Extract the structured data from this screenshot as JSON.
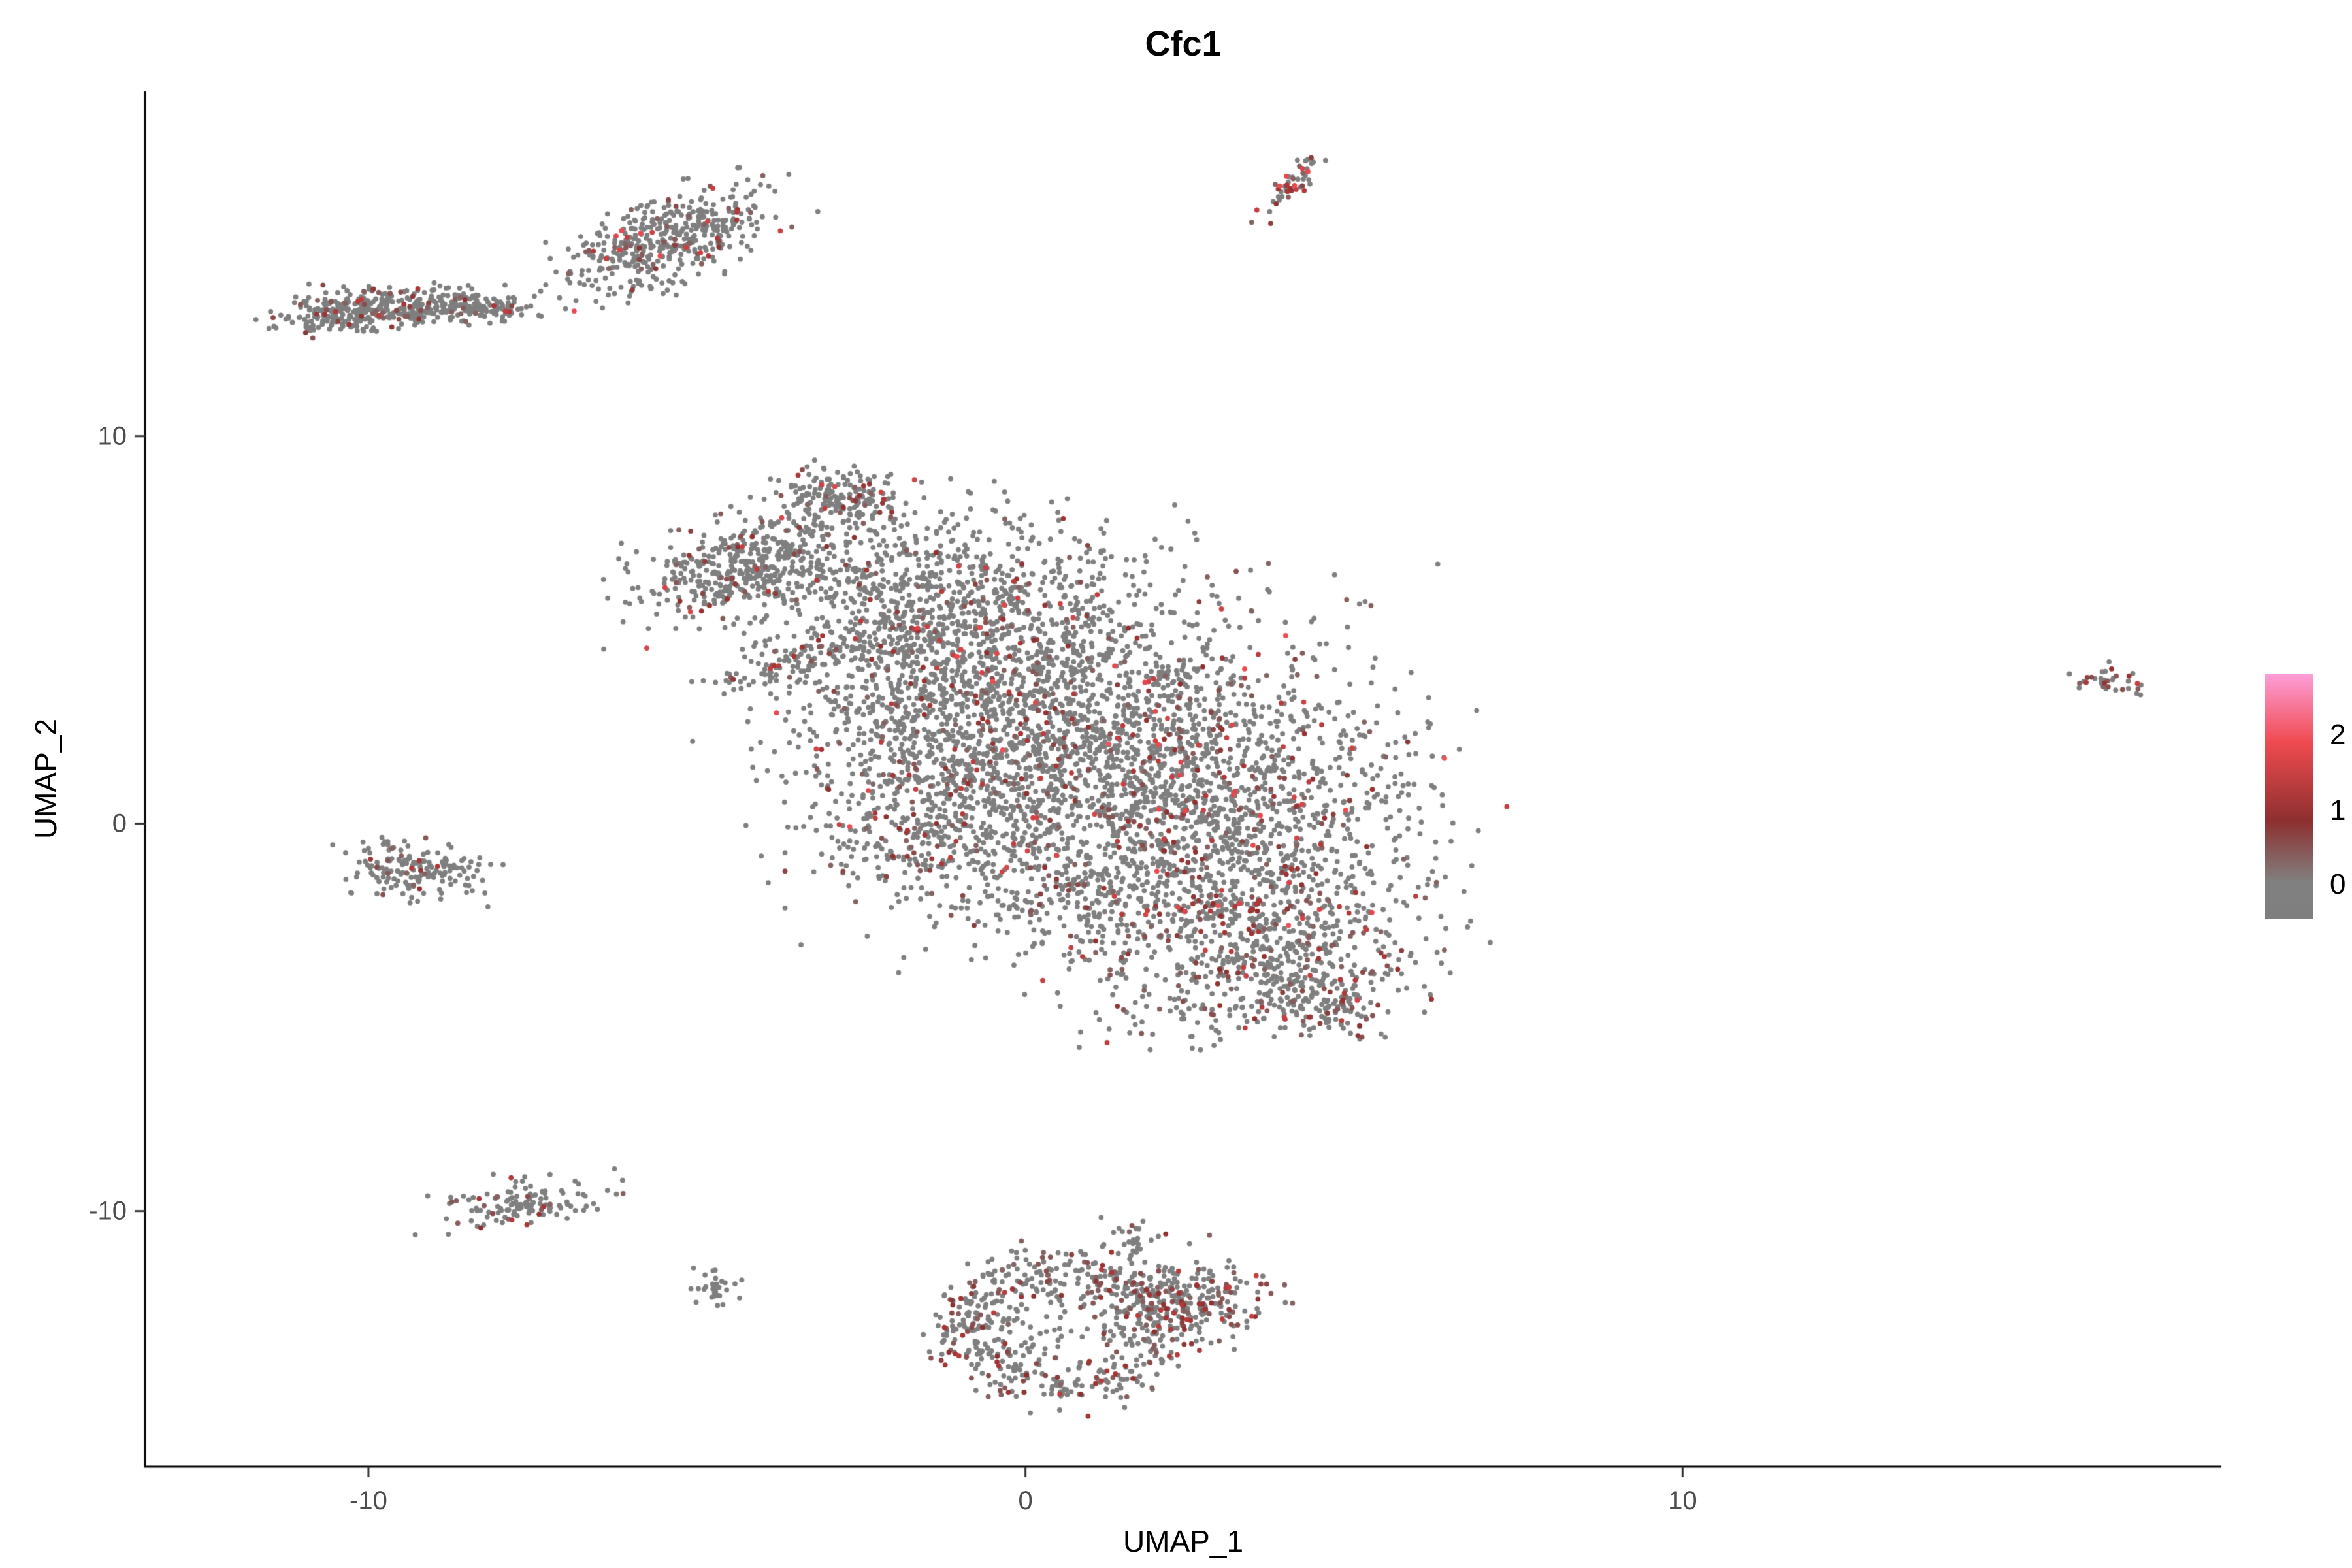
{
  "chart_data": {
    "type": "scatter",
    "title": "Cfc1",
    "xlabel": "UMAP_1",
    "ylabel": "UMAP_2",
    "xlim": [
      -13.4,
      18.2
    ],
    "ylim": [
      -16.6,
      18.9
    ],
    "x_ticks": [
      -10,
      0,
      10
    ],
    "y_ticks": [
      -10,
      0,
      10
    ],
    "grid": false,
    "background_color": "#ffffff",
    "axis_color": "#000000",
    "tick_label_color": "#4d4d4d",
    "point_color_default": "#7F7F7F",
    "seed": 42,
    "point_radius_px": 3.9,
    "color_scale": {
      "stops": [
        {
          "v": 0,
          "c": "#7F7F7F"
        },
        {
          "v": 1,
          "c": "#8E2F2F"
        },
        {
          "v": 2,
          "c": "#EF4B50"
        },
        {
          "v": 3,
          "c": "#FE9ED9"
        }
      ]
    },
    "legend": {
      "position": "right",
      "gradient_stops": [
        {
          "pos": 0.0,
          "color": "#FE9ED9"
        },
        {
          "pos": 0.28,
          "color": "#EF4B50"
        },
        {
          "pos": 0.6,
          "color": "#8E2F2F"
        },
        {
          "pos": 0.85,
          "color": "#808080"
        },
        {
          "pos": 1.0,
          "color": "#7F7F7F"
        }
      ],
      "ticks": [
        {
          "label": "2",
          "pos": 0.25
        },
        {
          "label": "1",
          "pos": 0.56
        },
        {
          "label": "0",
          "pos": 0.86
        }
      ]
    },
    "clusters": [
      {
        "name": "top-left-band-a",
        "shape": "gauss",
        "cx": -10.3,
        "cy": 13.2,
        "sx": 0.55,
        "sy": 0.28,
        "rot": 5,
        "n": 260,
        "expr_frac": 0.12,
        "expr_max": 1.6
      },
      {
        "name": "top-left-band-b",
        "shape": "gauss",
        "cx": -9.0,
        "cy": 13.35,
        "sx": 0.55,
        "sy": 0.25,
        "rot": 0,
        "n": 200,
        "expr_frac": 0.1,
        "expr_max": 1.6
      },
      {
        "name": "top-left-band-tail",
        "shape": "gauss",
        "cx": -8.1,
        "cy": 13.3,
        "sx": 0.3,
        "sy": 0.15,
        "rot": 0,
        "n": 40,
        "expr_frac": 0.05,
        "expr_max": 1.2
      },
      {
        "name": "top-mid-blob",
        "shape": "gauss",
        "cx": -5.4,
        "cy": 15.1,
        "sx": 1.0,
        "sy": 0.5,
        "rot": 38,
        "n": 460,
        "expr_frac": 0.12,
        "expr_max": 2.0
      },
      {
        "name": "top-streak",
        "shape": "gauss",
        "cx": 4.1,
        "cy": 16.6,
        "sx": 0.45,
        "sy": 0.1,
        "rot": 62,
        "n": 50,
        "expr_frac": 0.5,
        "expr_max": 2.0
      },
      {
        "name": "main-arm",
        "shape": "gauss",
        "cx": -4.3,
        "cy": 6.6,
        "sx": 0.8,
        "sy": 0.55,
        "rot": 22,
        "n": 420,
        "expr_frac": 0.1,
        "expr_max": 1.8
      },
      {
        "name": "main-arm-tip",
        "shape": "gauss",
        "cx": -2.9,
        "cy": 8.3,
        "sx": 0.5,
        "sy": 0.45,
        "rot": 30,
        "n": 200,
        "expr_frac": 0.12,
        "expr_max": 1.8
      },
      {
        "name": "main-streak",
        "shape": "gauss",
        "cx": -3.5,
        "cy": 4.2,
        "sx": 0.6,
        "sy": 0.18,
        "rot": 25,
        "n": 85,
        "expr_frac": 0.15,
        "expr_max": 1.6
      },
      {
        "name": "main-connector",
        "shape": "gauss",
        "cx": -2.2,
        "cy": 5.8,
        "sx": 0.9,
        "sy": 1.1,
        "rot": 0,
        "n": 280,
        "expr_frac": 0.08,
        "expr_max": 1.8
      },
      {
        "name": "main-upper",
        "shape": "gauss",
        "cx": -0.8,
        "cy": 5.4,
        "sx": 1.3,
        "sy": 1.3,
        "rot": 0,
        "n": 700,
        "expr_frac": 0.09,
        "expr_max": 2.0
      },
      {
        "name": "main-core-a",
        "shape": "gauss",
        "cx": 1.3,
        "cy": 2.7,
        "sx": 1.9,
        "sy": 1.6,
        "rot": -15,
        "n": 1300,
        "expr_frac": 0.13,
        "expr_max": 2.1
      },
      {
        "name": "main-core-b",
        "shape": "gauss",
        "cx": 2.9,
        "cy": -0.1,
        "sx": 1.5,
        "sy": 1.3,
        "rot": -15,
        "n": 900,
        "expr_frac": 0.15,
        "expr_max": 2.1
      },
      {
        "name": "main-left-mid",
        "shape": "gauss",
        "cx": -0.8,
        "cy": 0.7,
        "sx": 1.2,
        "sy": 1.2,
        "rot": 0,
        "n": 500,
        "expr_frac": 0.12,
        "expr_max": 1.9
      },
      {
        "name": "main-left-sparse",
        "shape": "gauss",
        "cx": -1.9,
        "cy": 2.7,
        "sx": 0.9,
        "sy": 1.4,
        "rot": 0,
        "n": 250,
        "expr_frac": 0.1,
        "expr_max": 1.8
      },
      {
        "name": "main-lower-right",
        "shape": "gauss",
        "cx": 3.8,
        "cy": -2.8,
        "sx": 1.1,
        "sy": 0.9,
        "rot": -25,
        "n": 420,
        "expr_frac": 0.2,
        "expr_max": 1.9
      },
      {
        "name": "main-tail",
        "shape": "gauss",
        "cx": 4.3,
        "cy": -4.4,
        "sx": 0.7,
        "sy": 0.5,
        "rot": -30,
        "n": 200,
        "expr_frac": 0.22,
        "expr_max": 1.8
      },
      {
        "name": "main-lower-mid",
        "shape": "gauss",
        "cx": 1.1,
        "cy": -2.0,
        "sx": 1.1,
        "sy": 0.8,
        "rot": 0,
        "n": 300,
        "expr_frac": 0.15,
        "expr_max": 1.8
      },
      {
        "name": "main-halo",
        "shape": "gauss",
        "cx": 0.5,
        "cy": 2.2,
        "sx": 2.6,
        "sy": 2.2,
        "rot": -15,
        "n": 250,
        "expr_frac": 0.1,
        "expr_max": 1.8
      },
      {
        "name": "main-below-tail",
        "shape": "gauss",
        "cx": 2.3,
        "cy": -4.6,
        "sx": 1.2,
        "sy": 0.6,
        "rot": -10,
        "n": 120,
        "expr_frac": 0.18,
        "expr_max": 1.6
      },
      {
        "name": "main-left-low",
        "shape": "gauss",
        "cx": -1.7,
        "cy": -0.6,
        "sx": 0.7,
        "sy": 0.8,
        "rot": 0,
        "n": 120,
        "expr_frac": 0.1,
        "expr_max": 1.6
      },
      {
        "name": "left-small",
        "shape": "gauss",
        "cx": -9.3,
        "cy": -1.2,
        "sx": 0.55,
        "sy": 0.35,
        "rot": -10,
        "n": 170,
        "expr_frac": 0.08,
        "expr_max": 1.4
      },
      {
        "name": "bottom-left",
        "shape": "gauss",
        "cx": -7.6,
        "cy": -9.8,
        "sx": 0.65,
        "sy": 0.3,
        "rot": 12,
        "n": 130,
        "expr_frac": 0.15,
        "expr_max": 1.6
      },
      {
        "name": "bottom-tiny",
        "shape": "gauss",
        "cx": -4.7,
        "cy": -12.0,
        "sx": 0.18,
        "sy": 0.28,
        "rot": 0,
        "n": 30,
        "expr_frac": 0.05,
        "expr_max": 1.2
      },
      {
        "name": "bottom-antenna",
        "shape": "gauss",
        "cx": 1.6,
        "cy": -10.9,
        "sx": 0.2,
        "sy": 0.35,
        "rot": 0,
        "n": 30,
        "expr_frac": 0.1,
        "expr_max": 1.4
      },
      {
        "name": "bottom-ring",
        "shape": "ring",
        "cx": 0.6,
        "cy": -13.0,
        "rx": 1.5,
        "ry": 1.5,
        "sigma": 0.22,
        "n": 520,
        "expr_frac": 0.3,
        "expr_max": 1.5
      },
      {
        "name": "bottom-ring-inner",
        "shape": "gauss",
        "cx": 0.6,
        "cy": -12.8,
        "sx": 0.7,
        "sy": 0.6,
        "rot": 0,
        "n": 70,
        "expr_frac": 0.12,
        "expr_max": 1.4
      },
      {
        "name": "bottom-right-lobe",
        "shape": "gauss",
        "cx": 2.5,
        "cy": -12.3,
        "sx": 0.6,
        "sy": 0.6,
        "rot": -20,
        "n": 230,
        "expr_frac": 0.32,
        "expr_max": 1.6
      },
      {
        "name": "far-right",
        "shape": "gauss",
        "cx": 16.5,
        "cy": 3.7,
        "sx": 0.3,
        "sy": 0.2,
        "rot": -20,
        "n": 35,
        "expr_frac": 0.4,
        "expr_max": 1.8
      }
    ]
  }
}
